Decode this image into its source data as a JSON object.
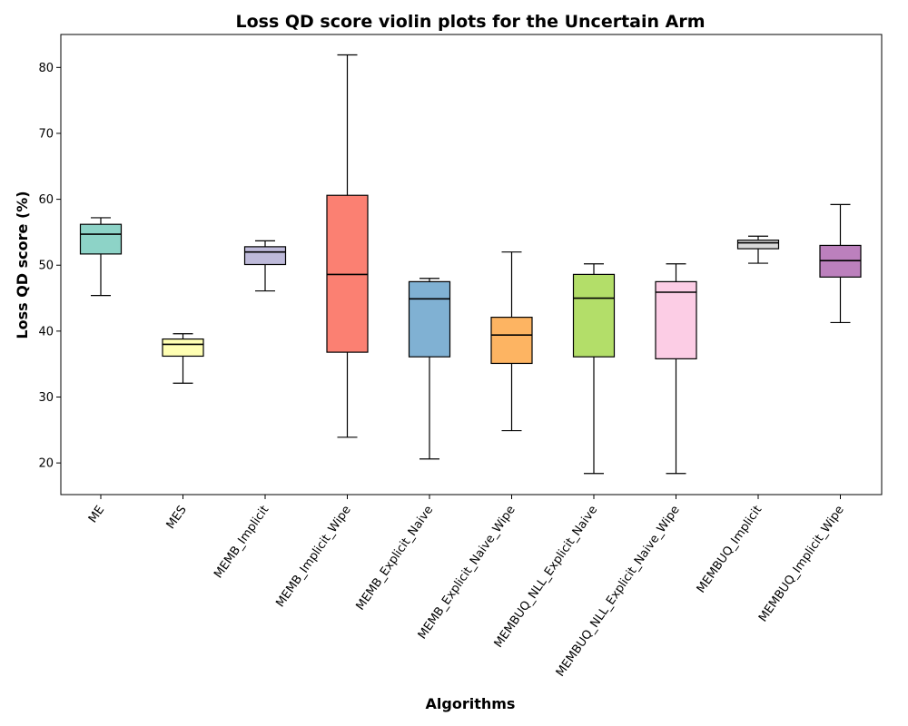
{
  "chart_data": {
    "type": "box",
    "title": "Loss QD score violin plots for the Uncertain Arm",
    "xlabel": "Algorithms",
    "ylabel": "Loss QD score (%)",
    "ylim": [
      15.2,
      85.0
    ],
    "yticks": [
      20,
      30,
      40,
      50,
      60,
      70,
      80
    ],
    "categories": [
      "ME",
      "MES",
      "MEMB_Implicit",
      "MEMB_Implicit_Wipe",
      "MEMB_Explicit_Naive",
      "MEMB_Explicit_Naive_Wipe",
      "MEMBUQ_NLL_Explicit_Naive",
      "MEMBUQ_NLL_Explicit_Naive_Wipe",
      "MEMBUQ_Implicit",
      "MEMBUQ_Implicit_Wipe"
    ],
    "boxes": [
      {
        "min": 45.4,
        "q1": 51.7,
        "median": 54.7,
        "q3": 56.2,
        "max": 57.2,
        "color": "#8dd3c7"
      },
      {
        "min": 32.1,
        "q1": 36.2,
        "median": 38.0,
        "q3": 38.8,
        "max": 39.6,
        "color": "#ffffb3"
      },
      {
        "min": 46.1,
        "q1": 50.1,
        "median": 52.0,
        "q3": 52.8,
        "max": 53.7,
        "color": "#bebada"
      },
      {
        "min": 23.9,
        "q1": 36.8,
        "median": 48.6,
        "q3": 60.6,
        "max": 81.9,
        "color": "#fb8072"
      },
      {
        "min": 20.6,
        "q1": 36.1,
        "median": 44.9,
        "q3": 47.5,
        "max": 48.0,
        "color": "#80b1d3"
      },
      {
        "min": 24.9,
        "q1": 35.1,
        "median": 39.4,
        "q3": 42.1,
        "max": 52.0,
        "color": "#fdb462"
      },
      {
        "min": 18.4,
        "q1": 36.1,
        "median": 45.0,
        "q3": 48.6,
        "max": 50.2,
        "color": "#b3de69"
      },
      {
        "min": 18.4,
        "q1": 35.8,
        "median": 45.9,
        "q3": 47.5,
        "max": 50.2,
        "color": "#fccde5"
      },
      {
        "min": 50.3,
        "q1": 52.5,
        "median": 53.4,
        "q3": 53.8,
        "max": 54.4,
        "color": "#d9d9d9"
      },
      {
        "min": 41.3,
        "q1": 48.2,
        "median": 50.7,
        "q3": 53.0,
        "max": 59.2,
        "color": "#bc80bd"
      }
    ]
  }
}
